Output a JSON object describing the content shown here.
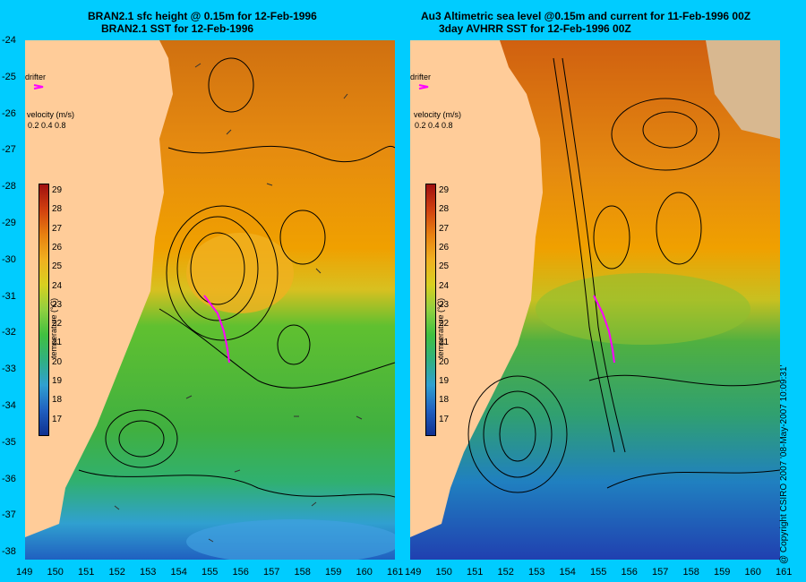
{
  "left_panel": {
    "title_line1": "BRAN2.1 sfc height @ 0.15m for 12-Feb-1996",
    "title_line2": "BRAN2.1 SST for 12-Feb-1996"
  },
  "right_panel": {
    "title_line1": "Au3 Altimetric sea level  @0.15m and current for 11-Feb-1996 00Z",
    "title_line2": "3day AVHRR SST for 12-Feb-1996 00Z"
  },
  "overlay": {
    "drifter_label": "drifter",
    "velocity_label": "velocity (m/s)",
    "velocity_values": "0.2 0.4 0.8",
    "temperature_label": "temperature (°C)"
  },
  "colorbar_ticks": [
    "29",
    "28",
    "27",
    "26",
    "25",
    "24",
    "23",
    "22",
    "21",
    "20",
    "19",
    "18",
    "17"
  ],
  "y_axis_ticks": [
    "-24",
    "-25",
    "-26",
    "-27",
    "-28",
    "-29",
    "-30",
    "-31",
    "-32",
    "-33",
    "-34",
    "-35",
    "-36",
    "-37",
    "-38"
  ],
  "x_axis_ticks_left": [
    "149",
    "150",
    "151",
    "152",
    "153",
    "154",
    "155",
    "156",
    "157",
    "158",
    "159",
    "160",
    "161"
  ],
  "x_axis_ticks_right": [
    "149",
    "150",
    "151",
    "152",
    "153",
    "154",
    "155",
    "156",
    "157",
    "158",
    "159",
    "160",
    "161"
  ],
  "copyright": "@ Copyright CSIRO 2007 '08-May-2007 10:09:31'",
  "colors": {
    "background": "#00ccff",
    "land": "#ffcc99",
    "drifter": "#ff00ff"
  }
}
